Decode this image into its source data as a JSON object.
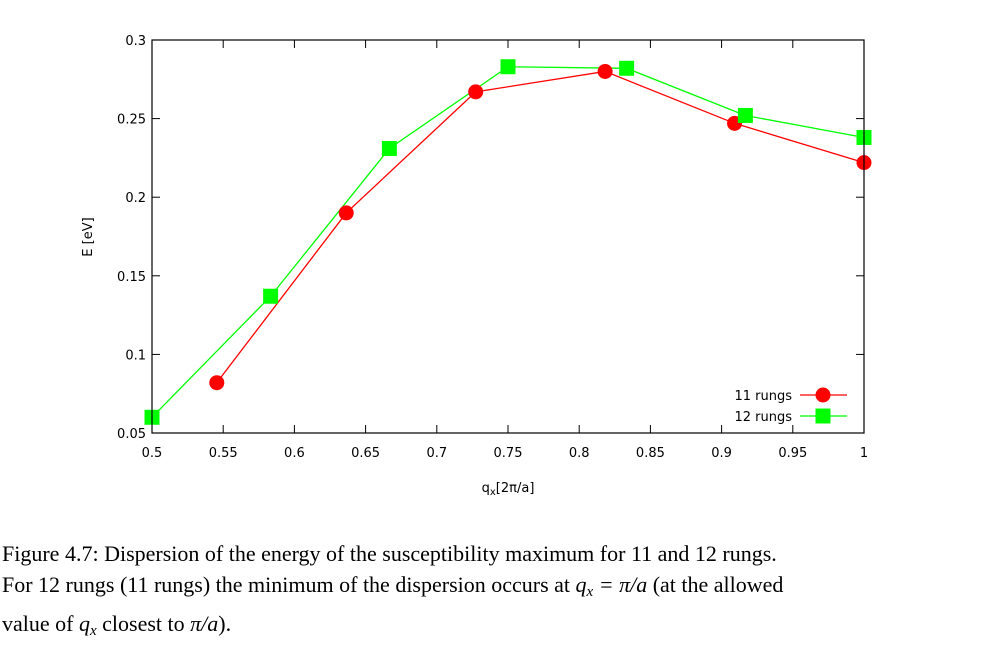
{
  "chart_data": {
    "type": "line",
    "xlabel_base": "q",
    "xlabel_sub": "x",
    "xlabel_unit": "[2π/a]",
    "ylabel": "E [eV]",
    "xlim": [
      0.5,
      1.0
    ],
    "ylim": [
      0.05,
      0.3
    ],
    "xticks": [
      "0.5",
      "0.55",
      "0.6",
      "0.65",
      "0.7",
      "0.75",
      "0.8",
      "0.85",
      "0.9",
      "0.95",
      "1"
    ],
    "yticks": [
      "0.05",
      "0.1",
      "0.15",
      "0.2",
      "0.25",
      "0.3"
    ],
    "legend_position": "bottom-right",
    "series": [
      {
        "name": "11 rungs",
        "color": "#ff0000",
        "marker": "circle",
        "x": [
          0.5455,
          0.6364,
          0.7273,
          0.8182,
          0.9091,
          1.0
        ],
        "y": [
          0.082,
          0.19,
          0.267,
          0.28,
          0.247,
          0.222
        ]
      },
      {
        "name": "12 rungs",
        "color": "#00ff00",
        "marker": "square",
        "x": [
          0.5,
          0.5833,
          0.6667,
          0.75,
          0.8333,
          0.9167,
          1.0
        ],
        "y": [
          0.06,
          0.137,
          0.231,
          0.283,
          0.282,
          0.252,
          0.238
        ]
      }
    ]
  },
  "caption": {
    "label": "Figure 4.7:",
    "line1": "Dispersion of the energy of the susceptibility maximum for 11 and 12 rungs.",
    "line2_a": "For 12 rungs (11 rungs) the minimum of the dispersion occurs at",
    "math_q": "q",
    "math_sub": "x",
    "math_eq": " = π/a",
    "line2_b": "(at the allowed",
    "line3_a": "value of",
    "line3_b": "closest to",
    "math_pi_a": "π/a",
    "line3_c": ")."
  }
}
